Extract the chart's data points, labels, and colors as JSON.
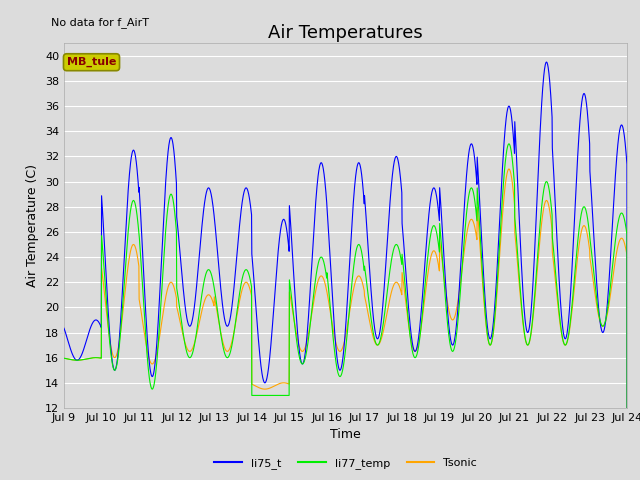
{
  "title": "Air Temperatures",
  "subtitle": "No data for f_AirT",
  "xlabel": "Time",
  "ylabel": "Air Temperature (C)",
  "ylim": [
    12,
    41
  ],
  "yticks": [
    12,
    14,
    16,
    18,
    20,
    22,
    24,
    26,
    28,
    30,
    32,
    34,
    36,
    38,
    40
  ],
  "xtick_labels": [
    "Jul 9",
    "Jul 10",
    "Jul 11",
    "Jul 12",
    "Jul 13",
    "Jul 14",
    "Jul 15",
    "Jul 16",
    "Jul 17",
    "Jul 18",
    "Jul 19",
    "Jul 20",
    "Jul 21",
    "Jul 22",
    "Jul 23",
    "Jul 24"
  ],
  "series": {
    "li75_t": {
      "color": "#0000ff",
      "label": "li75_t"
    },
    "li77_temp": {
      "color": "#00ee00",
      "label": "li77_temp"
    },
    "Tsonic": {
      "color": "#ffa500",
      "label": "Tsonic"
    }
  },
  "legend_box_color": "#cccc00",
  "legend_box_text": "MB_tule",
  "legend_box_text_color": "#880000",
  "plot_bg_color": "#dcdcdc",
  "grid_color": "#ffffff",
  "title_fontsize": 13,
  "label_fontsize": 9,
  "tick_fontsize": 8,
  "li75_peaks": [
    19.0,
    32.5,
    33.5,
    29.5,
    29.5,
    27.0,
    31.5,
    31.5,
    32.0,
    29.5,
    33.0,
    36.0,
    39.5,
    37.0,
    34.5
  ],
  "li75_mins": [
    15.8,
    15.0,
    14.5,
    18.5,
    18.5,
    14.0,
    15.5,
    15.0,
    17.5,
    16.5,
    17.0,
    17.5,
    18.0,
    17.5,
    18.0
  ],
  "li77_peaks": [
    16.0,
    28.5,
    29.0,
    23.0,
    23.0,
    13.0,
    24.0,
    25.0,
    25.0,
    26.5,
    29.5,
    33.0,
    30.0,
    28.0,
    27.5
  ],
  "li77_mins": [
    15.8,
    15.0,
    13.5,
    16.0,
    16.0,
    13.0,
    15.5,
    14.5,
    17.0,
    16.0,
    16.5,
    17.0,
    17.0,
    17.0,
    18.5
  ],
  "tsonic_peaks": [
    16.0,
    25.0,
    22.0,
    21.0,
    22.0,
    14.0,
    22.5,
    22.5,
    22.0,
    24.5,
    27.0,
    31.0,
    28.5,
    26.5,
    25.5
  ],
  "tsonic_mins": [
    15.8,
    16.0,
    15.5,
    16.5,
    16.5,
    13.5,
    16.5,
    16.5,
    17.0,
    16.5,
    19.0,
    17.0,
    17.0,
    17.0,
    18.5
  ],
  "peak_phase": 0.6,
  "n_per_day": 144
}
